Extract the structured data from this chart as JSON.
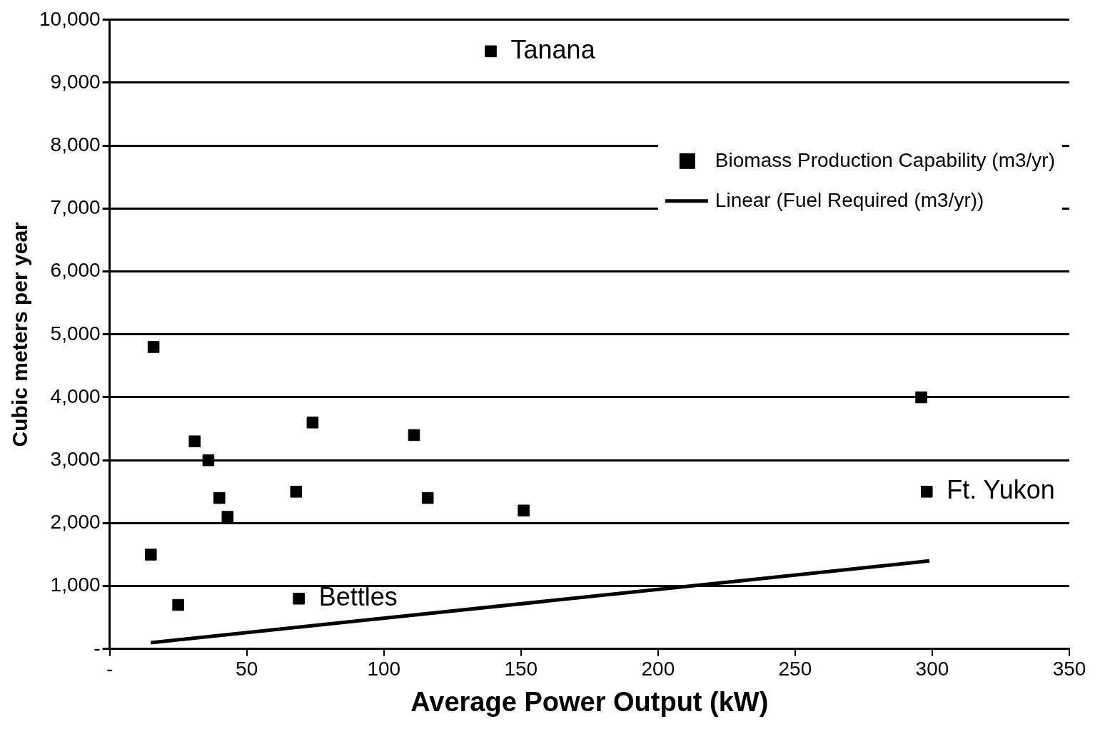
{
  "chart_data": {
    "type": "scatter",
    "xlabel": "Average Power Output (kW)",
    "ylabel": "Cubic meters per year",
    "series": [
      {
        "name": "Biomass Production Capability (m3/yr)",
        "color": "#000000",
        "marker": "square",
        "x": [
          16,
          15,
          25,
          31,
          36,
          40,
          43,
          68,
          69,
          74,
          111,
          116,
          151,
          139,
          296,
          298
        ],
        "values": [
          4800,
          1500,
          700,
          3300,
          3000,
          2400,
          2100,
          2500,
          800,
          3600,
          3400,
          2400,
          2200,
          9500,
          4000,
          2500
        ]
      },
      {
        "name": "Linear (Fuel Required (m3/yr))",
        "type": "line",
        "color": "#000000",
        "marker": "none",
        "line_style": "solid",
        "x": [
          15,
          299
        ],
        "values": [
          100,
          1400
        ]
      }
    ],
    "xlim": [
      0,
      350
    ],
    "xticks": [
      {
        "value": 0,
        "label": "-"
      },
      50,
      100,
      150,
      200,
      250,
      300,
      350
    ],
    "ylim": [
      0,
      10000
    ],
    "yticks": [
      {
        "value": 0,
        "label": "-"
      },
      {
        "value": 1000,
        "label": "1,000"
      },
      {
        "value": 2000,
        "label": "2,000"
      },
      {
        "value": 3000,
        "label": "3,000"
      },
      {
        "value": 4000,
        "label": "4,000"
      },
      {
        "value": 5000,
        "label": "5,000"
      },
      {
        "value": 6000,
        "label": "6,000"
      },
      {
        "value": 7000,
        "label": "7,000"
      },
      {
        "value": 8000,
        "label": "8,000"
      },
      {
        "value": 9000,
        "label": "9,000"
      },
      {
        "value": 10000,
        "label": "10,000"
      }
    ],
    "grid": "y",
    "legend": "top right",
    "annotations": [
      {
        "text": "Tanana",
        "x": 139,
        "y": 9500
      },
      {
        "text": "Bettles",
        "x": 69,
        "y": 800
      },
      {
        "text": "Ft. Yukon",
        "x": 298,
        "y": 2500
      }
    ]
  }
}
